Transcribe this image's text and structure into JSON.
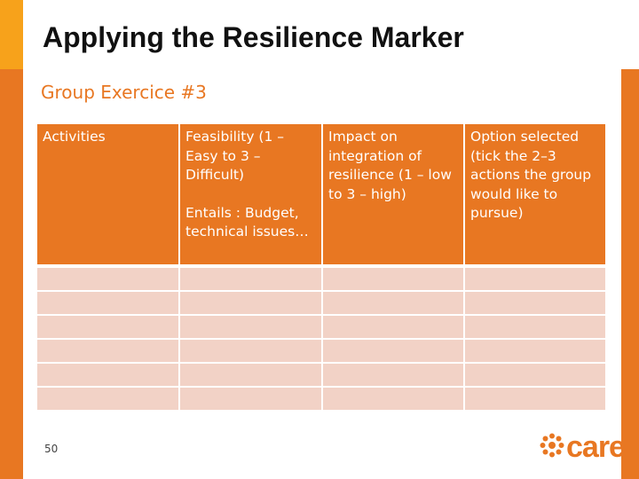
{
  "slide": {
    "title": "Applying the Resilience Marker",
    "subtitle": "Group Exercice #3",
    "page_number": "50"
  },
  "table": {
    "headers": [
      {
        "lines": [
          "Activities"
        ]
      },
      {
        "lines": [
          "Feasibility (1 – Easy to 3 – Difficult)",
          "Entails : Budget, technical issues…"
        ]
      },
      {
        "lines": [
          "Impact on integration of resilience (1 – low to 3 – high)"
        ]
      },
      {
        "lines": [
          "Option selected (tick the 2–3 actions the group would like to pursue)"
        ]
      }
    ],
    "rows": [
      [
        "",
        "",
        "",
        ""
      ],
      [
        "",
        "",
        "",
        ""
      ],
      [
        "",
        "",
        "",
        ""
      ],
      [
        "",
        "",
        "",
        ""
      ],
      [
        "",
        "",
        "",
        ""
      ],
      [
        "",
        "",
        "",
        ""
      ]
    ]
  },
  "logo": {
    "text": "care",
    "icon": "care-logo-icon"
  },
  "colors": {
    "orange": "#E87722",
    "yellow_accent": "#F7A21B",
    "row_fill": "#F2D2C6",
    "title_text": "#111111"
  }
}
